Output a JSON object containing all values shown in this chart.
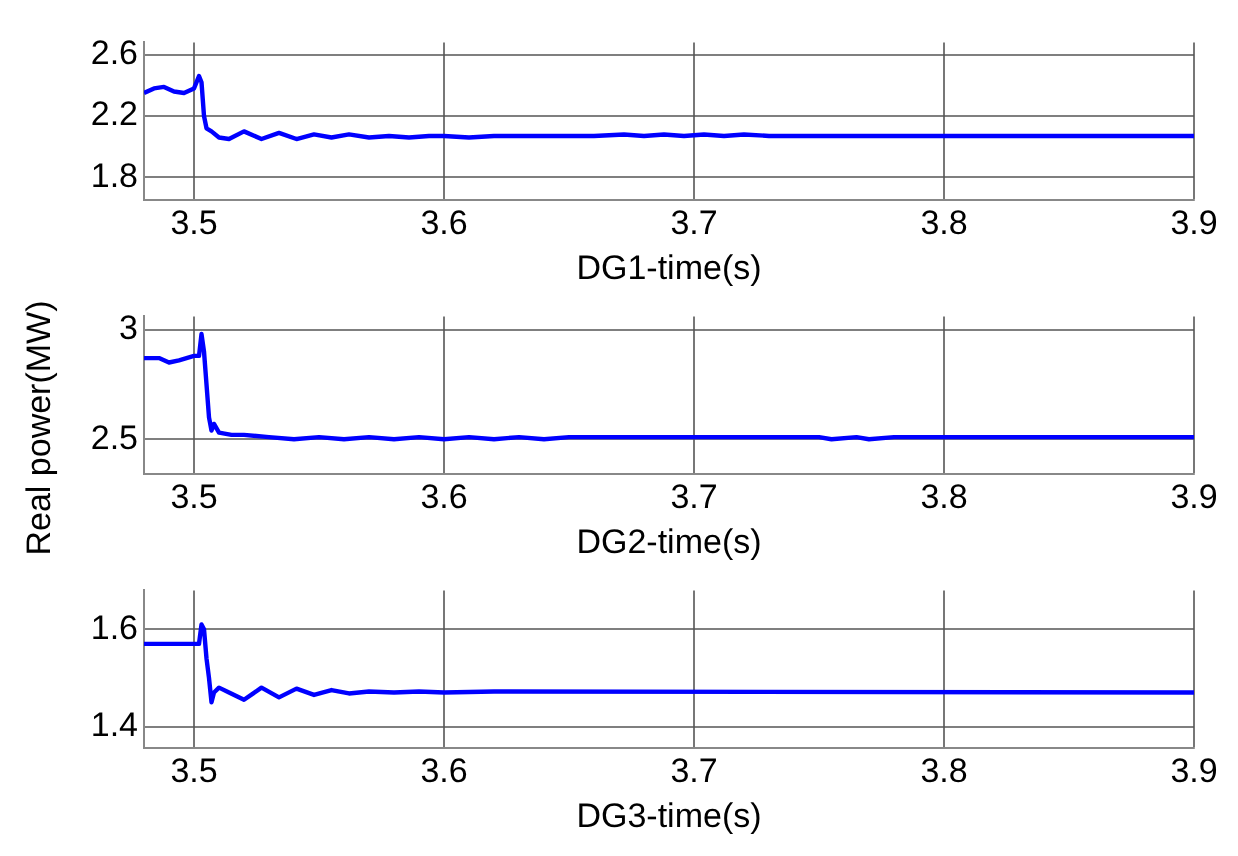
{
  "chart_data": [
    {
      "type": "line",
      "xlabel": "DG1-time(s)",
      "xlim": [
        3.48,
        3.9
      ],
      "xticks": [
        3.5,
        3.6,
        3.7,
        3.8,
        3.9
      ],
      "ylim": [
        1.65,
        2.68
      ],
      "yticks": [
        1.8,
        2.2,
        2.6
      ],
      "grid": true,
      "marker": "none",
      "line_style": "solid",
      "legend": false,
      "series": [
        {
          "color": "#0000ff",
          "x": [
            3.48,
            3.484,
            3.488,
            3.492,
            3.496,
            3.5,
            3.502,
            3.503,
            3.504,
            3.505,
            3.507,
            3.51,
            3.514,
            3.52,
            3.527,
            3.534,
            3.541,
            3.548,
            3.555,
            3.562,
            3.57,
            3.578,
            3.586,
            3.594,
            3.6,
            3.61,
            3.62,
            3.64,
            3.66,
            3.672,
            3.68,
            3.688,
            3.696,
            3.704,
            3.712,
            3.72,
            3.73,
            3.9
          ],
          "values": [
            2.35,
            2.38,
            2.39,
            2.36,
            2.35,
            2.38,
            2.46,
            2.42,
            2.2,
            2.12,
            2.1,
            2.06,
            2.05,
            2.1,
            2.05,
            2.09,
            2.05,
            2.08,
            2.06,
            2.08,
            2.06,
            2.07,
            2.06,
            2.07,
            2.07,
            2.06,
            2.07,
            2.07,
            2.07,
            2.08,
            2.07,
            2.08,
            2.07,
            2.08,
            2.07,
            2.08,
            2.07,
            2.07
          ]
        }
      ]
    },
    {
      "type": "line",
      "xlabel": "DG2-time(s)",
      "ylabel": "Real power(MW)",
      "xlim": [
        3.48,
        3.9
      ],
      "xticks": [
        3.5,
        3.6,
        3.7,
        3.8,
        3.9
      ],
      "ylim": [
        2.34,
        3.06
      ],
      "yticks": [
        2.5,
        3
      ],
      "grid": true,
      "marker": "none",
      "line_style": "solid",
      "legend": false,
      "series": [
        {
          "color": "#0000ff",
          "x": [
            3.48,
            3.486,
            3.49,
            3.494,
            3.5,
            3.502,
            3.503,
            3.504,
            3.506,
            3.507,
            3.508,
            3.51,
            3.515,
            3.52,
            3.53,
            3.54,
            3.55,
            3.56,
            3.57,
            3.58,
            3.59,
            3.6,
            3.61,
            3.62,
            3.63,
            3.64,
            3.65,
            3.75,
            3.755,
            3.765,
            3.77,
            3.78,
            3.785,
            3.9
          ],
          "values": [
            2.87,
            2.87,
            2.85,
            2.86,
            2.88,
            2.88,
            2.98,
            2.9,
            2.6,
            2.54,
            2.57,
            2.53,
            2.52,
            2.52,
            2.51,
            2.5,
            2.51,
            2.5,
            2.51,
            2.5,
            2.51,
            2.5,
            2.51,
            2.5,
            2.51,
            2.5,
            2.51,
            2.51,
            2.5,
            2.51,
            2.5,
            2.51,
            2.51,
            2.51
          ]
        }
      ]
    },
    {
      "type": "line",
      "xlabel": "DG3-time(s)",
      "xlim": [
        3.48,
        3.9
      ],
      "xticks": [
        3.5,
        3.6,
        3.7,
        3.8,
        3.9
      ],
      "ylim": [
        1.355,
        1.68
      ],
      "yticks": [
        1.4,
        1.6
      ],
      "grid": true,
      "marker": "none",
      "line_style": "solid",
      "legend": false,
      "series": [
        {
          "color": "#0000ff",
          "x": [
            3.48,
            3.502,
            3.503,
            3.504,
            3.505,
            3.506,
            3.507,
            3.508,
            3.51,
            3.514,
            3.52,
            3.527,
            3.534,
            3.541,
            3.548,
            3.555,
            3.562,
            3.57,
            3.58,
            3.59,
            3.6,
            3.62,
            3.9
          ],
          "values": [
            1.57,
            1.57,
            1.61,
            1.6,
            1.54,
            1.5,
            1.45,
            1.47,
            1.48,
            1.47,
            1.455,
            1.48,
            1.46,
            1.478,
            1.465,
            1.475,
            1.468,
            1.472,
            1.47,
            1.472,
            1.47,
            1.472,
            1.47
          ]
        }
      ]
    }
  ]
}
